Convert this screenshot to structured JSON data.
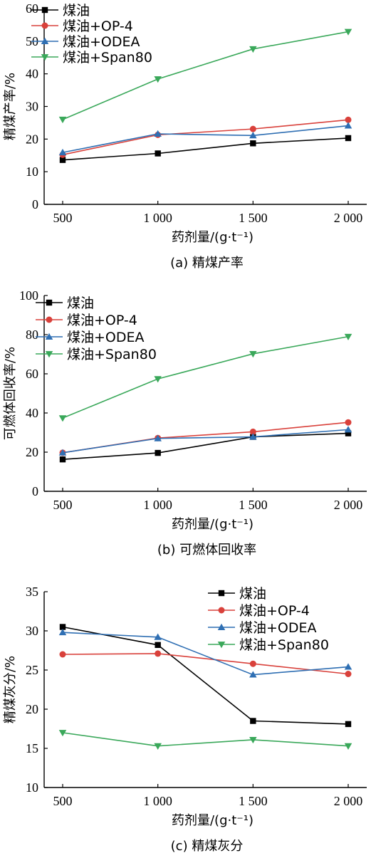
{
  "chart_data": [
    {
      "type": "line",
      "caption": "(a)  精煤产率",
      "xlabel": "药剂量/(g·t⁻¹)",
      "ylabel": "精煤产率/%",
      "categories": [
        "500",
        "1 000",
        "1 500",
        "2 000"
      ],
      "x": [
        500,
        1000,
        1500,
        2000
      ],
      "ylim": [
        0,
        60
      ],
      "yticks": [
        0,
        10,
        20,
        30,
        40,
        50,
        60
      ],
      "legend_position": "top-left",
      "series": [
        {
          "name": "煤油",
          "color": "#000000",
          "marker": "square",
          "values": [
            13.6,
            15.6,
            18.7,
            20.3
          ]
        },
        {
          "name": "煤油+OP-4",
          "color": "#d9413b",
          "marker": "circle",
          "values": [
            15.2,
            21.3,
            23.1,
            25.9
          ]
        },
        {
          "name": "煤油+ODEA",
          "color": "#2f6fb3",
          "marker": "triangle-up",
          "values": [
            15.9,
            21.6,
            21.1,
            24.1
          ]
        },
        {
          "name": "煤油+Span80",
          "color": "#3aa85a",
          "marker": "triangle-down",
          "values": [
            26.0,
            38.4,
            47.6,
            52.9
          ]
        }
      ]
    },
    {
      "type": "line",
      "caption": "(b)  可燃体回收率",
      "xlabel": "药剂量/(g·t⁻¹)",
      "ylabel": "可燃体回收率/%",
      "categories": [
        "500",
        "1 000",
        "1 500",
        "2 000"
      ],
      "x": [
        500,
        1000,
        1500,
        2000
      ],
      "ylim": [
        0,
        100
      ],
      "yticks": [
        0,
        20,
        40,
        60,
        80,
        100
      ],
      "legend_position": "top-left",
      "series": [
        {
          "name": "煤油",
          "color": "#000000",
          "marker": "square",
          "values": [
            16.3,
            19.6,
            27.8,
            29.6
          ]
        },
        {
          "name": "煤油+OP-4",
          "color": "#d9413b",
          "marker": "circle",
          "values": [
            19.7,
            27.2,
            30.4,
            35.2
          ]
        },
        {
          "name": "煤油+ODEA",
          "color": "#2f6fb3",
          "marker": "triangle-up",
          "values": [
            19.7,
            27.0,
            27.8,
            31.5
          ]
        },
        {
          "name": "煤油+Span80",
          "color": "#3aa85a",
          "marker": "triangle-down",
          "values": [
            37.4,
            57.4,
            70.2,
            79.0
          ]
        }
      ]
    },
    {
      "type": "line",
      "caption": "(c)  精煤灰分",
      "xlabel": "药剂量/(g·t⁻¹)",
      "ylabel": "精煤灰分/%",
      "categories": [
        "500",
        "1 000",
        "1 500",
        "2 000"
      ],
      "x": [
        500,
        1000,
        1500,
        2000
      ],
      "ylim": [
        10,
        35
      ],
      "yticks": [
        10,
        15,
        20,
        25,
        30,
        35
      ],
      "legend_position": "top-right",
      "series": [
        {
          "name": "煤油",
          "color": "#000000",
          "marker": "square",
          "values": [
            30.5,
            28.2,
            18.5,
            18.1
          ]
        },
        {
          "name": "煤油+OP-4",
          "color": "#d9413b",
          "marker": "circle",
          "values": [
            27.0,
            27.1,
            25.8,
            24.5
          ]
        },
        {
          "name": "煤油+ODEA",
          "color": "#2f6fb3",
          "marker": "triangle-up",
          "values": [
            29.8,
            29.2,
            24.4,
            25.4
          ]
        },
        {
          "name": "煤油+Span80",
          "color": "#3aa85a",
          "marker": "triangle-down",
          "values": [
            17.0,
            15.3,
            16.1,
            15.3
          ]
        }
      ]
    }
  ]
}
